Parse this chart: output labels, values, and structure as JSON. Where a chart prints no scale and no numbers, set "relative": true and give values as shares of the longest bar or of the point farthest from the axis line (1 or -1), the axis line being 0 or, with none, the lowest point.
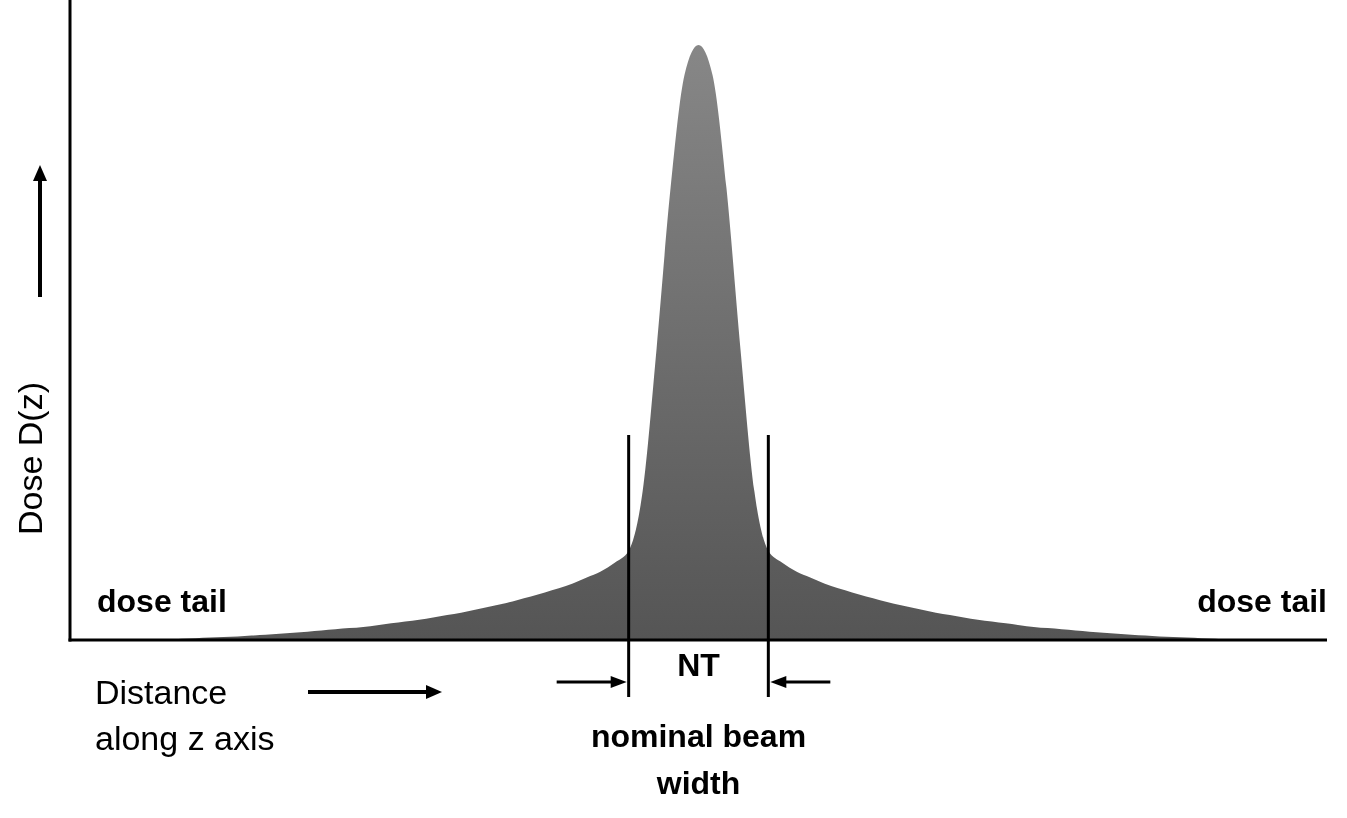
{
  "chart_data": {
    "type": "area",
    "relative": true,
    "xlabel": "Distance along z axis",
    "ylabel": "Dose D(z)",
    "annotations": [
      "dose tail",
      "dose tail",
      "NT",
      "nominal beam width"
    ],
    "categories": [
      null,
      null,
      null,
      null,
      null,
      null,
      null,
      null,
      null,
      null,
      null,
      null,
      null,
      null,
      null,
      null,
      null,
      null,
      null,
      null,
      null,
      null,
      null,
      null,
      null,
      null,
      null,
      null,
      null,
      null,
      null,
      null,
      null,
      null,
      null,
      null,
      null,
      null,
      null,
      null,
      null,
      null,
      null,
      null,
      null,
      null,
      null,
      null,
      null,
      null,
      null,
      null,
      null,
      null,
      null,
      null,
      null,
      null,
      null,
      null,
      null,
      null,
      null,
      null,
      null,
      null,
      null,
      null,
      null,
      null,
      null,
      null,
      null,
      null,
      null,
      null,
      null,
      null,
      null,
      null,
      null,
      null,
      null,
      null,
      null,
      null,
      null,
      null,
      null,
      null,
      null
    ],
    "series": [
      {
        "color": "#555555",
        "values": [
          0,
          0,
          0,
          0,
          0,
          0,
          0,
          0,
          0.002,
          0.003,
          0.004,
          0.005,
          0.006,
          0.0075,
          0.009,
          0.0105,
          0.012,
          0.014,
          0.016,
          0.018,
          0.02,
          0.022,
          0.025,
          0.028,
          0.031,
          0.034,
          0.038,
          0.042,
          0.046,
          0.051,
          0.056,
          0.061,
          0.067,
          0.073,
          0.08,
          0.087,
          0.095,
          0.105,
          0.115,
          0.13,
          0.15,
          0.25,
          0.49,
          0.76,
          0.95,
          1,
          0.95,
          0.76,
          0.49,
          0.25,
          0.15,
          0.13,
          0.115,
          0.105,
          0.095,
          0.087,
          0.08,
          0.073,
          0.067,
          0.061,
          0.056,
          0.051,
          0.046,
          0.042,
          0.038,
          0.034,
          0.031,
          0.028,
          0.025,
          0.022,
          0.02,
          0.018,
          0.016,
          0.014,
          0.012,
          0.0105,
          0.009,
          0.0075,
          0.006,
          0.005,
          0.004,
          0.003,
          0.002,
          0,
          0,
          0,
          0,
          0,
          0,
          0,
          0
        ]
      }
    ]
  }
}
